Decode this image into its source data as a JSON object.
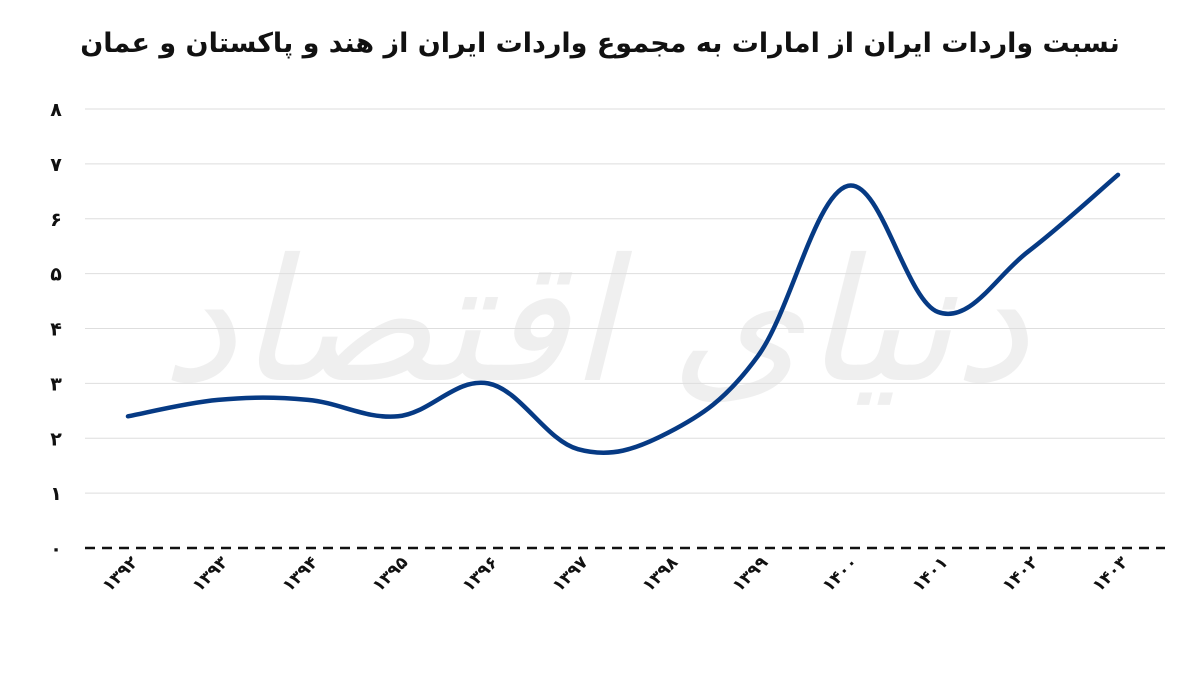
{
  "chart_data": {
    "type": "line",
    "title": "نسبت واردات ایران از امارات به مجموع واردات ایران از هند و پاکستان و عمان",
    "xlabel": "",
    "ylabel": "",
    "categories": [
      "۱۳۹۲",
      "۱۳۹۳",
      "۱۳۹۴",
      "۱۳۹۵",
      "۱۳۹۶",
      "۱۳۹۷",
      "۱۳۹۸",
      "۱۳۹۹",
      "۱۴۰۰",
      "۱۴۰۱",
      "۱۴۰۲",
      "۱۴۰۳"
    ],
    "series": [
      {
        "values": [
          2.4,
          2.7,
          2.7,
          2.4,
          3.0,
          1.8,
          2.1,
          3.5,
          6.6,
          4.3,
          5.4,
          6.8
        ]
      }
    ],
    "ylim": [
      0,
      8
    ],
    "yticks": [
      0,
      1,
      2,
      3,
      4,
      5,
      6,
      7,
      8
    ],
    "ytick_labels": [
      "۰",
      "۱",
      "۲",
      "۳",
      "۴",
      "۵",
      "۶",
      "۷",
      "۸"
    ],
    "grid": true,
    "legend": "none",
    "colors": {
      "line": "#063a84",
      "grid": "#dedede",
      "zero_line": "#111111"
    }
  },
  "watermark": "دنیای اقتصاد"
}
